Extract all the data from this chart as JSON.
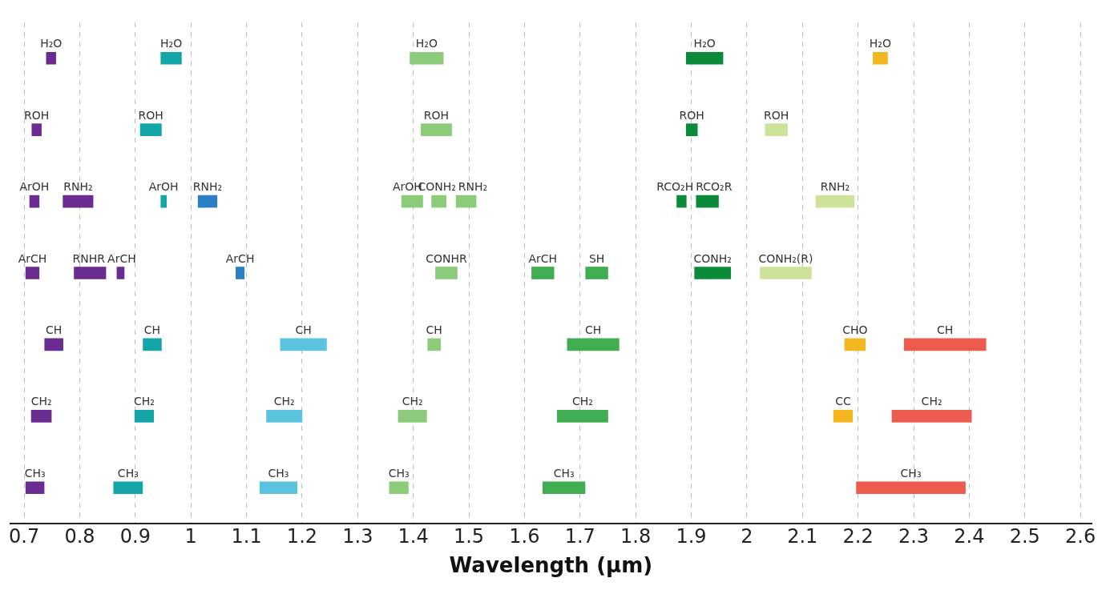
{
  "chart_data": {
    "type": "bar",
    "orientation": "horizontal",
    "xlabel": "Wavelength (µm)",
    "categories": [
      null,
      null,
      null,
      null,
      null,
      null,
      null
    ],
    "xlim": [
      0.675,
      2.62
    ],
    "xticks": [
      0.7,
      0.8,
      0.9,
      1,
      1.1,
      1.2,
      1.3,
      1.4,
      1.5,
      1.6,
      1.7,
      1.8,
      1.9,
      2,
      2.1,
      2.2,
      2.3,
      2.4,
      2.5,
      2.6
    ],
    "grid": "x",
    "legend": false,
    "tick_labels": "x",
    "series": [
      {
        "base": [
          0.74,
          0.714,
          0.71,
          0.703,
          0.737,
          0.713,
          0.703
        ],
        "values": [
          0.017,
          0.017,
          0.017,
          0.024,
          0.033,
          0.036,
          0.033
        ],
        "colors": [
          "#6a2c91",
          "#6a2c91",
          "#6a2c91",
          "#6a2c91",
          "#6a2c91",
          "#6a2c91",
          "#6a2c91"
        ],
        "value_labels": [
          "H₂O",
          "ROH",
          "ArOH",
          "ArCH",
          "CH",
          "CH₂",
          "CH₃"
        ]
      },
      {
        "base": [
          0.946,
          0.909,
          0.77,
          0.79,
          0.914,
          0.899,
          0.861
        ],
        "values": [
          0.037,
          0.038,
          0.054,
          0.057,
          0.033,
          0.034,
          0.052
        ],
        "colors": [
          "#14a5a8",
          "#14a5a8",
          "#6a2c91",
          "#6a2c91",
          "#14a5a8",
          "#14a5a8",
          "#14a5a8"
        ],
        "value_labels": [
          "H₂O",
          "ROH",
          "RNH₂",
          "RNHR",
          "CH",
          "CH₂",
          "CH₃"
        ]
      },
      {
        "base": [
          1.394,
          1.414,
          0.946,
          0.867,
          1.161,
          1.136,
          1.124
        ],
        "values": [
          0.06,
          0.055,
          0.01,
          0.013,
          0.083,
          0.064,
          0.067
        ],
        "colors": [
          "#8ccb7a",
          "#8ccb7a",
          "#14a5a8",
          "#6a2c91",
          "#5bc3dd",
          "#5bc3dd",
          "#5bc3dd"
        ],
        "value_labels": [
          "H₂O",
          "ROH",
          "ArOH",
          "ArCH",
          "CH",
          "CH₂",
          "CH₃"
        ]
      },
      {
        "base": [
          1.891,
          1.891,
          1.013,
          1.081,
          1.426,
          1.373,
          1.357
        ],
        "values": [
          0.066,
          0.02,
          0.034,
          0.015,
          0.023,
          0.051,
          0.034
        ],
        "colors": [
          "#0b8a3a",
          "#0b8a3a",
          "#2b7fc6",
          "#2b7fc6",
          "#8ccb7a",
          "#8ccb7a",
          "#8ccb7a"
        ],
        "value_labels": [
          "H₂O",
          "ROH",
          "RNH₂",
          "ArCH",
          "CH",
          "CH₂",
          "CH₃"
        ]
      },
      {
        "base": [
          2.227,
          2.033,
          1.379,
          1.44,
          1.677,
          1.659,
          1.633
        ],
        "values": [
          0.026,
          0.04,
          0.038,
          0.039,
          0.093,
          0.091,
          0.076
        ],
        "colors": [
          "#f3b61f",
          "#cde39a",
          "#8ccb7a",
          "#8ccb7a",
          "#3fad50",
          "#3fad50",
          "#3fad50"
        ],
        "value_labels": [
          "H₂O",
          "ROH",
          "ArOH",
          "CONHR",
          "CH",
          "CH₂",
          "CH₃"
        ]
      },
      {
        "base": [
          null,
          null,
          1.433,
          1.613,
          2.176,
          2.156,
          2.197
        ],
        "values": [
          null,
          null,
          0.026,
          0.04,
          0.037,
          0.034,
          0.196
        ],
        "colors": [
          null,
          null,
          "#8ccb7a",
          "#3fad50",
          "#f3b61f",
          "#f3b61f",
          "#ec5b4e"
        ],
        "value_labels": [
          null,
          null,
          "CONH₂",
          "ArCH",
          "CHO",
          "CC",
          "CH₃"
        ]
      },
      {
        "base": [
          null,
          null,
          1.477,
          1.71,
          2.283,
          2.261,
          null
        ],
        "values": [
          null,
          null,
          0.036,
          0.04,
          0.147,
          0.143,
          null
        ],
        "colors": [
          null,
          null,
          "#8ccb7a",
          "#3fad50",
          "#ec5b4e",
          "#ec5b4e",
          null
        ],
        "value_labels": [
          null,
          null,
          "RNH₂",
          "SH",
          "CH",
          "CH₂",
          null
        ]
      },
      {
        "base": [
          null,
          null,
          1.874,
          1.906,
          null,
          null,
          null
        ],
        "values": [
          null,
          null,
          0.017,
          0.065,
          null,
          null,
          null
        ],
        "colors": [
          null,
          null,
          "#0b8a3a",
          "#0b8a3a",
          null,
          null,
          null
        ],
        "value_labels": [
          null,
          null,
          "RCO₂H",
          "CONH₂",
          null,
          null,
          null
        ]
      },
      {
        "base": [
          null,
          null,
          1.909,
          2.024,
          null,
          null,
          null
        ],
        "values": [
          null,
          null,
          0.04,
          0.092,
          null,
          null,
          null
        ],
        "colors": [
          null,
          null,
          "#0b8a3a",
          "#cde39a",
          null,
          null,
          null
        ],
        "value_labels": [
          null,
          null,
          "RCO₂R",
          "CONH₂(R)",
          null,
          null,
          null
        ]
      },
      {
        "base": [
          null,
          null,
          2.124,
          null,
          null,
          null,
          null
        ],
        "values": [
          null,
          null,
          0.069,
          null,
          null,
          null,
          null
        ],
        "colors": [
          null,
          null,
          "#cde39a",
          null,
          null,
          null,
          null
        ],
        "value_labels": [
          null,
          null,
          "RNH₂",
          null,
          null,
          null,
          null
        ]
      }
    ]
  }
}
